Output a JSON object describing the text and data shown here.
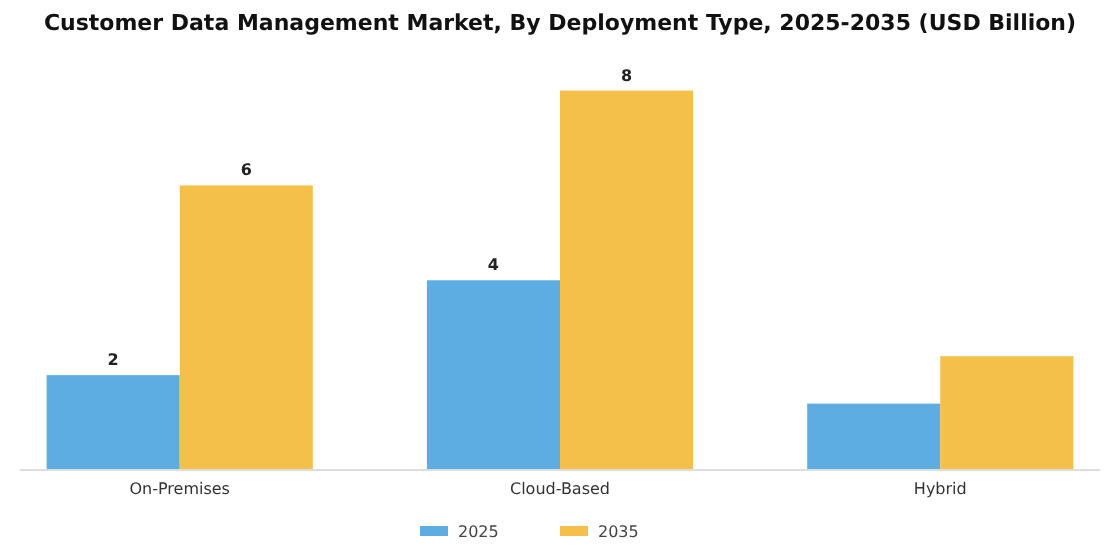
{
  "chart_data": {
    "type": "bar",
    "title": "Customer Data Management Market, By Deployment Type, 2025-2035 (USD Billion)",
    "categories": [
      "On-Premises",
      "Cloud-Based",
      "Hybrid"
    ],
    "series": [
      {
        "name": "2025",
        "color": "#5dade2",
        "values": [
          2,
          4,
          1.4
        ],
        "value_labels": [
          "2",
          "4",
          null
        ]
      },
      {
        "name": "2035",
        "color": "#f5c04a",
        "values": [
          6,
          8,
          2.4
        ],
        "value_labels": [
          "6",
          "8",
          null
        ]
      }
    ],
    "legend": "bottom"
  }
}
